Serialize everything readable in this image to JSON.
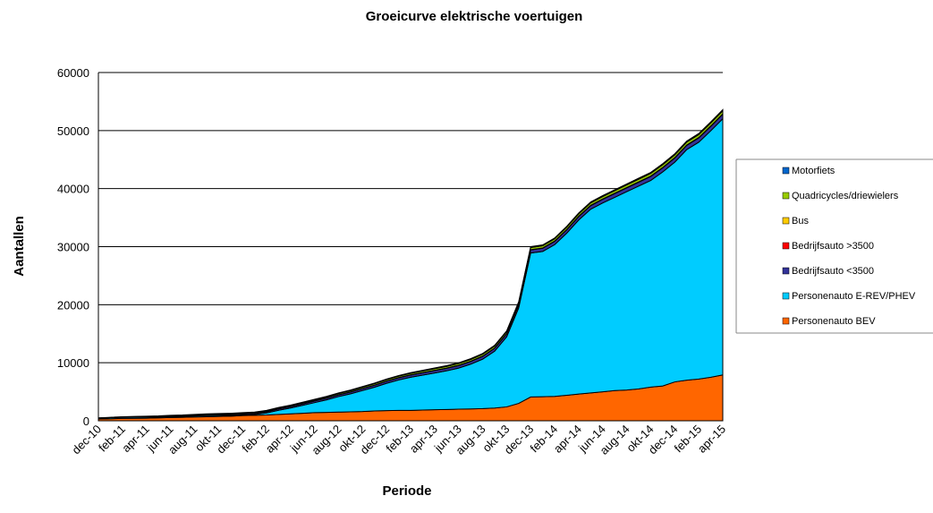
{
  "chart_data": {
    "type": "stacked-area",
    "title": "Groeicurve elektrische voertuigen",
    "x_label": "Periode",
    "y_label": "Aantallen",
    "categories": [
      "dec-10",
      null,
      "feb-11",
      null,
      "apr-11",
      null,
      "jun-11",
      null,
      "aug-11",
      null,
      "okt-11",
      null,
      "dec-11",
      null,
      "feb-12",
      null,
      "apr-12",
      null,
      "jun-12",
      null,
      "aug-12",
      null,
      "okt-12",
      null,
      "dec-12",
      null,
      "feb-13",
      null,
      "apr-13",
      null,
      "jun-13",
      null,
      "aug-13",
      null,
      "okt-13",
      null,
      "dec-13",
      null,
      "feb-14",
      null,
      "apr-14",
      null,
      "jun-14",
      null,
      "aug-14",
      null,
      "okt-14",
      null,
      "dec-14",
      null,
      "feb-15",
      null,
      "apr-15"
    ],
    "series": [
      {
        "name": "Personenauto BEV",
        "color": "#ff6600",
        "values": [
          300,
          350,
          400,
          420,
          450,
          500,
          550,
          600,
          650,
          700,
          750,
          800,
          900,
          950,
          1000,
          1100,
          1200,
          1300,
          1400,
          1450,
          1500,
          1550,
          1600,
          1700,
          1750,
          1800,
          1800,
          1850,
          1900,
          1950,
          2000,
          2050,
          2100,
          2200,
          2400,
          3000,
          4100,
          4150,
          4200,
          4400,
          4600,
          4800,
          5000,
          5200,
          5300,
          5500,
          5800,
          6000,
          6700,
          7000,
          7200,
          7500,
          7900
        ]
      },
      {
        "name": "Personenauto E-REV/PHEV",
        "color": "#00ccff",
        "values": [
          160,
          181,
          202,
          202,
          193,
          164,
          184,
          155,
          176,
          196,
          167,
          138,
          108,
          129,
          350,
          720,
          991,
          1362,
          1732,
          2153,
          2674,
          3094,
          3615,
          4086,
          4706,
          5227,
          5698,
          6018,
          6339,
          6660,
          7080,
          7701,
          8522,
          9792,
          12063,
          16434,
          24804,
          25025,
          26146,
          27916,
          29987,
          31658,
          32528,
          33299,
          34170,
          34940,
          35611,
          36882,
          37852,
          39723,
          40794,
          42464,
          44135
        ]
      },
      {
        "name": "Bedrijfsauto <3500",
        "color": "#333399",
        "values": [
          0,
          15,
          30,
          45,
          60,
          75,
          90,
          105,
          120,
          135,
          150,
          165,
          180,
          195,
          210,
          225,
          240,
          255,
          270,
          285,
          300,
          315,
          330,
          345,
          360,
          375,
          390,
          405,
          420,
          435,
          450,
          465,
          480,
          495,
          510,
          525,
          540,
          555,
          570,
          585,
          600,
          615,
          630,
          645,
          660,
          675,
          690,
          705,
          720,
          735,
          750,
          765,
          780
        ]
      },
      {
        "name": "Bedrijfsauto >3500",
        "color": "#ff0000",
        "values": [
          0,
          0,
          0,
          1,
          1,
          1,
          2,
          2,
          2,
          3,
          3,
          3,
          4,
          4,
          4,
          5,
          5,
          5,
          6,
          6,
          6,
          7,
          7,
          7,
          8,
          8,
          8,
          9,
          9,
          9,
          10,
          10,
          10,
          11,
          11,
          11,
          12,
          12,
          12,
          13,
          13,
          13,
          14,
          14,
          14,
          15,
          15,
          15,
          16,
          16,
          16,
          17,
          17
        ]
      },
      {
        "name": "Bus",
        "color": "#ffcc00",
        "values": [
          0,
          1,
          2,
          3,
          4,
          5,
          6,
          7,
          8,
          9,
          10,
          11,
          12,
          13,
          14,
          15,
          16,
          17,
          18,
          19,
          20,
          21,
          22,
          23,
          24,
          25,
          26,
          27,
          28,
          29,
          30,
          31,
          32,
          33,
          34,
          35,
          36,
          37,
          38,
          39,
          40,
          41,
          42,
          43,
          44,
          45,
          46,
          47,
          48,
          49,
          50,
          51,
          52
        ]
      },
      {
        "name": "Quadricycles/driewielers",
        "color": "#99cc00",
        "values": [
          0,
          10,
          20,
          30,
          40,
          50,
          60,
          70,
          80,
          90,
          100,
          110,
          120,
          130,
          140,
          150,
          160,
          170,
          180,
          190,
          200,
          210,
          220,
          230,
          240,
          250,
          260,
          270,
          280,
          290,
          300,
          310,
          320,
          330,
          340,
          350,
          360,
          370,
          380,
          390,
          400,
          410,
          420,
          430,
          440,
          450,
          460,
          470,
          480,
          490,
          500,
          510,
          520
        ]
      },
      {
        "name": "Motorfiets",
        "color": "#0066cc",
        "values": [
          40,
          43,
          46,
          49,
          52,
          55,
          58,
          61,
          64,
          67,
          70,
          73,
          76,
          79,
          82,
          85,
          88,
          91,
          94,
          97,
          100,
          103,
          106,
          109,
          112,
          115,
          118,
          121,
          124,
          127,
          130,
          133,
          136,
          139,
          142,
          145,
          148,
          151,
          154,
          157,
          160,
          163,
          166,
          169,
          172,
          175,
          178,
          181,
          184,
          187,
          190,
          193,
          196
        ]
      }
    ],
    "ylim": [
      0,
      60000
    ],
    "yticks": [
      0,
      10000,
      20000,
      30000,
      40000,
      50000,
      60000
    ],
    "grid": true
  }
}
